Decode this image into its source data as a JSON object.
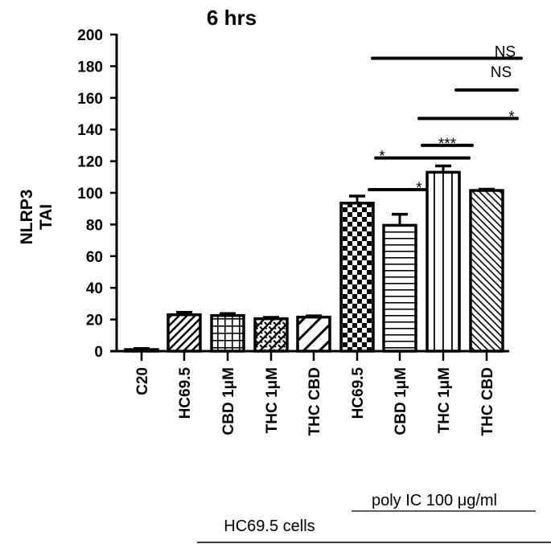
{
  "chart_data": {
    "type": "bar",
    "title": "6 hrs",
    "xlabel": "",
    "ylabel": [
      "NLRP3",
      "TAI"
    ],
    "ylim": [
      0,
      200
    ],
    "yticks": [
      0,
      20,
      40,
      60,
      80,
      100,
      120,
      140,
      160,
      180,
      200
    ],
    "grid": false,
    "categories": [
      "C20",
      "HC69.5",
      "CBD 1μM",
      "THC 1μM",
      "THC CBD",
      "HC69.5",
      "CBD 1μM",
      "THC 1μM",
      "THC CBD"
    ],
    "values": [
      1,
      23,
      22.5,
      20.5,
      21.5,
      93.5,
      79.5,
      113,
      101.5
    ],
    "errors": [
      0.3,
      1.5,
      1.2,
      0.8,
      0.8,
      4.5,
      7,
      4,
      0.8
    ],
    "patterns": [
      "none",
      "diag-back",
      "grid",
      "brick",
      "diag-back-wide",
      "checker",
      "horizontal",
      "vertical",
      "diag-fwd"
    ],
    "groups": [
      {
        "label": "poly IC 100 μg/ml",
        "from": 5,
        "to": 8
      },
      {
        "label": "HC69.5 cells",
        "from": 1,
        "to": 8
      }
    ],
    "significance": [
      {
        "from": 5,
        "to": 8,
        "label": "NS",
        "y": 185
      },
      {
        "from": 7,
        "to": 8,
        "label": "NS",
        "y": 165
      },
      {
        "from": 6,
        "to": 8,
        "label": "*",
        "y": 147
      },
      {
        "from": 6,
        "to": 7,
        "label": "***",
        "y": 130
      },
      {
        "from": 5,
        "to": 7,
        "label": "*",
        "y": 122
      },
      {
        "from": 5,
        "to": 6,
        "label": "*",
        "y": 102
      }
    ]
  },
  "labels": {
    "title": "6 hrs",
    "ylabel_line1": "NLRP3",
    "ylabel_line2": "TAI",
    "group1": "poly IC 100 μg/ml",
    "group2": "HC69.5 cells"
  }
}
